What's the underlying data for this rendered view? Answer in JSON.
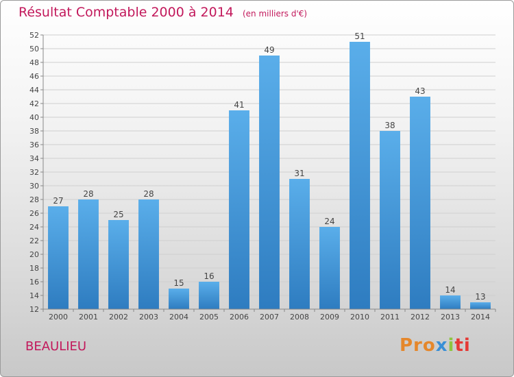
{
  "title": "Résultat Comptable 2000 à 2014",
  "unit": "(en milliers d'€)",
  "place": "BEAULIEU",
  "logo": {
    "p1": "Pro",
    "p2": "x",
    "p3": "i",
    "p4": "ti"
  },
  "colors": {
    "bar": "#3d8fd4",
    "title": "#c2185b"
  },
  "chart_data": {
    "type": "bar",
    "categories": [
      "2000",
      "2001",
      "2002",
      "2003",
      "2004",
      "2005",
      "2006",
      "2007",
      "2008",
      "2009",
      "2010",
      "2011",
      "2012",
      "2013",
      "2014"
    ],
    "values": [
      27,
      28,
      25,
      28,
      15,
      16,
      41,
      49,
      31,
      24,
      51,
      38,
      43,
      14,
      13
    ],
    "ylim": [
      12,
      52
    ],
    "yticks": [
      12,
      14,
      16,
      18,
      20,
      22,
      24,
      26,
      28,
      30,
      32,
      34,
      36,
      38,
      40,
      42,
      44,
      46,
      48,
      50,
      52
    ],
    "grid": true,
    "title": "Résultat Comptable 2000 à 2014",
    "xlabel": "",
    "ylabel": ""
  }
}
